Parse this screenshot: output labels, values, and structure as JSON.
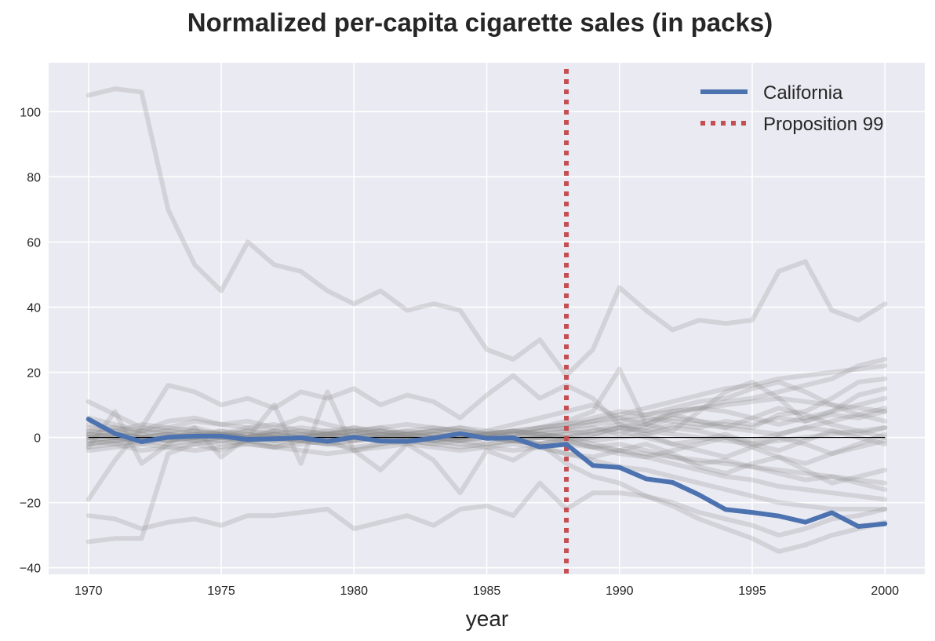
{
  "chart_data": {
    "type": "line",
    "title": "Normalized per-capita cigarette sales (in packs)",
    "xlabel": "year",
    "ylabel": "",
    "xlim": [
      1968.5,
      2001.5
    ],
    "ylim": [
      -42,
      115
    ],
    "xticks": [
      1970,
      1975,
      1980,
      1985,
      1990,
      1995,
      2000
    ],
    "yticks": [
      -40,
      -20,
      0,
      20,
      40,
      60,
      80,
      100
    ],
    "grid": true,
    "legend_position": "top-right",
    "colors": {
      "background": "#EAEAF2",
      "grid": "#FFFFFF",
      "california": "#4C72B0",
      "proposition": "#C44E52",
      "other_states": "#8C8C8C",
      "zero_line": "#000000"
    },
    "x": [
      1970,
      1971,
      1972,
      1973,
      1974,
      1975,
      1976,
      1977,
      1978,
      1979,
      1980,
      1981,
      1982,
      1983,
      1984,
      1985,
      1986,
      1987,
      1988,
      1989,
      1990,
      1991,
      1992,
      1993,
      1994,
      1995,
      1996,
      1997,
      1998,
      1999,
      2000
    ],
    "series": [
      {
        "name": "California",
        "values": [
          5.6,
          1.2,
          -1.3,
          0.1,
          0.4,
          0.4,
          -0.6,
          -0.4,
          -0.1,
          -1.2,
          0.1,
          -1.1,
          -1.2,
          -0.2,
          1.2,
          -0.3,
          -0.1,
          -2.9,
          -2.1,
          -8.6,
          -9.2,
          -12.7,
          -13.8,
          -17.6,
          -22.1,
          -23.0,
          -24.1,
          -26.0,
          -23.1,
          -27.3,
          -26.5
        ]
      },
      {
        "name": "",
        "values": [
          105,
          107,
          106,
          70,
          53,
          45,
          60,
          53,
          51,
          45,
          41,
          45,
          39,
          41,
          39,
          27,
          24,
          30,
          19,
          27,
          46,
          39,
          33,
          36,
          35,
          36,
          51,
          54,
          39,
          36,
          41
        ]
      },
      {
        "name": "",
        "values": [
          -24,
          -25,
          -28,
          -26,
          -25,
          -27,
          -24,
          -24,
          -23,
          -22,
          -28,
          -26,
          -24,
          -27,
          -22,
          -21,
          -24,
          -14,
          -22,
          -17,
          -17,
          -18,
          -20,
          -23,
          -25,
          -27,
          -30,
          -28,
          -25,
          -24,
          -22
        ]
      },
      {
        "name": "",
        "values": [
          -32,
          -31,
          -31,
          -5,
          -2,
          -4,
          -1,
          -3,
          -2,
          -1,
          -4,
          -2,
          0,
          -1,
          -2,
          -3,
          -4,
          -3,
          -5,
          -7,
          -9,
          -10,
          -12,
          -14,
          -16,
          -18,
          -20,
          -21,
          -22,
          -22,
          -22
        ]
      },
      {
        "name": "",
        "values": [
          -19,
          -7,
          3,
          2,
          1,
          1,
          0,
          2,
          1,
          1,
          3,
          1,
          2,
          1,
          0,
          2,
          1,
          3,
          5,
          8,
          21,
          4,
          8,
          9,
          11,
          12,
          14,
          16,
          18,
          22,
          24
        ]
      },
      {
        "name": "",
        "values": [
          11,
          7,
          3,
          16,
          14,
          10,
          12,
          9,
          14,
          12,
          15,
          10,
          13,
          11,
          6,
          13,
          19,
          12,
          16,
          12,
          4,
          3,
          6,
          5,
          4,
          3,
          7,
          8,
          12,
          17,
          18
        ]
      },
      {
        "name": "",
        "values": [
          -3,
          8,
          -8,
          -2,
          3,
          -6,
          0,
          10,
          -8,
          14,
          -4,
          -10,
          -2,
          -7,
          -17,
          -4,
          -7,
          -2,
          -8,
          -12,
          -14,
          -18,
          -21,
          -25,
          -28,
          -31,
          -35,
          -33,
          -30,
          -28,
          -26
        ]
      },
      {
        "name": "",
        "values": [
          2,
          1,
          0,
          -1,
          1,
          2,
          0,
          1,
          -1,
          0,
          1,
          2,
          1,
          0,
          -1,
          1,
          0,
          2,
          3,
          5,
          7,
          9,
          11,
          13,
          15,
          16,
          18,
          19,
          20,
          21,
          22
        ]
      },
      {
        "name": "",
        "values": [
          -2,
          -1,
          0,
          1,
          -1,
          0,
          2,
          1,
          0,
          -1,
          0,
          1,
          0,
          -1,
          1,
          0,
          -1,
          0,
          -1,
          -3,
          -5,
          -6,
          -8,
          -10,
          -12,
          -13,
          -15,
          -16,
          -17,
          -18,
          -19
        ]
      },
      {
        "name": "",
        "values": [
          3,
          2,
          4,
          3,
          5,
          4,
          3,
          2,
          1,
          2,
          3,
          2,
          1,
          2,
          3,
          2,
          4,
          6,
          8,
          10,
          6,
          4,
          2,
          8,
          14,
          17,
          12,
          5,
          8,
          13,
          15
        ]
      },
      {
        "name": "",
        "values": [
          -4,
          -3,
          -2,
          -3,
          -4,
          -3,
          -2,
          -3,
          -4,
          -5,
          -4,
          -3,
          -2,
          -3,
          -4,
          -3,
          -2,
          -3,
          -5,
          -6,
          -4,
          -2,
          -5,
          -9,
          -11,
          -8,
          -6,
          -10,
          -14,
          -12,
          -10
        ]
      },
      {
        "name": "",
        "values": [
          1,
          0,
          -1,
          0,
          1,
          0,
          -1,
          0,
          1,
          0,
          -1,
          0,
          1,
          0,
          -1,
          0,
          1,
          0,
          1,
          2,
          3,
          2,
          1,
          0,
          -1,
          -2,
          -1,
          0,
          1,
          2,
          3
        ]
      },
      {
        "name": "",
        "values": [
          0,
          1,
          2,
          1,
          0,
          -1,
          0,
          1,
          2,
          1,
          0,
          1,
          2,
          3,
          2,
          1,
          2,
          3,
          4,
          5,
          6,
          7,
          8,
          9,
          10,
          11,
          12,
          11,
          10,
          9,
          8
        ]
      },
      {
        "name": "",
        "values": [
          -1,
          -2,
          -1,
          0,
          -1,
          -2,
          -1,
          0,
          -1,
          -2,
          -1,
          0,
          -1,
          -2,
          -1,
          0,
          -1,
          -2,
          -2,
          -3,
          -4,
          -5,
          -6,
          -7,
          -8,
          -9,
          -10,
          -11,
          -12,
          -13,
          -14
        ]
      },
      {
        "name": "",
        "values": [
          4,
          3,
          2,
          5,
          6,
          4,
          5,
          3,
          6,
          4,
          2,
          3,
          4,
          3,
          2,
          1,
          2,
          3,
          4,
          6,
          8,
          7,
          9,
          11,
          12,
          15,
          17,
          14,
          10,
          7,
          5
        ]
      },
      {
        "name": "",
        "values": [
          -3,
          -2,
          -4,
          -3,
          -2,
          -1,
          -2,
          -3,
          -1,
          -2,
          -3,
          -2,
          -1,
          -2,
          -3,
          -2,
          -1,
          -2,
          0,
          2,
          4,
          1,
          -2,
          -4,
          -6,
          -3,
          0,
          -2,
          -5,
          -3,
          -1
        ]
      },
      {
        "name": "",
        "values": [
          2,
          3,
          1,
          2,
          3,
          1,
          0,
          2,
          3,
          2,
          1,
          0,
          1,
          2,
          1,
          0,
          1,
          2,
          3,
          4,
          5,
          6,
          5,
          4,
          3,
          2,
          1,
          3,
          5,
          7,
          9
        ]
      },
      {
        "name": "",
        "values": [
          -1,
          0,
          1,
          -1,
          0,
          1,
          2,
          0,
          -1,
          0,
          1,
          2,
          0,
          -1,
          0,
          1,
          2,
          1,
          0,
          -2,
          -4,
          -6,
          -4,
          -2,
          0,
          -3,
          -6,
          -8,
          -5,
          -2,
          1
        ]
      },
      {
        "name": "",
        "values": [
          1,
          2,
          0,
          -1,
          0,
          2,
          1,
          -1,
          0,
          1,
          2,
          0,
          -1,
          1,
          2,
          0,
          -1,
          0,
          2,
          3,
          1,
          4,
          7,
          5,
          3,
          6,
          9,
          7,
          4,
          2,
          0
        ]
      },
      {
        "name": "",
        "values": [
          0,
          -1,
          -2,
          0,
          1,
          0,
          -1,
          -2,
          0,
          1,
          0,
          -1,
          -2,
          0,
          1,
          0,
          -1,
          -2,
          -1,
          0,
          2,
          0,
          -2,
          -1,
          1,
          -2,
          -4,
          -1,
          2,
          0,
          -2
        ]
      },
      {
        "name": "",
        "values": [
          6,
          4,
          2,
          3,
          2,
          1,
          3,
          4,
          2,
          1,
          2,
          3,
          1,
          2,
          3,
          1,
          2,
          1,
          0,
          -1,
          0,
          1,
          3,
          2,
          0,
          -1,
          1,
          3,
          2,
          1,
          3
        ]
      },
      {
        "name": "",
        "values": [
          -2,
          -1,
          0,
          1,
          2,
          1,
          0,
          -1,
          0,
          1,
          2,
          1,
          0,
          -1,
          0,
          1,
          2,
          1,
          0,
          1,
          3,
          5,
          7,
          9,
          8,
          6,
          4,
          6,
          8,
          10,
          12
        ]
      },
      {
        "name": "",
        "values": [
          1,
          0,
          -1,
          -2,
          -1,
          0,
          1,
          0,
          -1,
          -2,
          -1,
          0,
          1,
          0,
          -1,
          -2,
          -1,
          0,
          -1,
          -3,
          -2,
          -4,
          -6,
          -8,
          -7,
          -9,
          -11,
          -13,
          -12,
          -14,
          -16
        ]
      },
      {
        "name": "",
        "values": [
          0,
          1,
          0,
          1,
          0,
          1,
          0,
          1,
          0,
          1,
          0,
          1,
          0,
          1,
          0,
          1,
          0,
          1,
          2,
          1,
          3,
          2,
          4,
          3,
          5,
          4,
          6,
          5,
          7,
          6,
          8
        ]
      }
    ]
  },
  "legend": {
    "items": [
      {
        "label": "California"
      },
      {
        "label": "Proposition 99"
      }
    ]
  },
  "intervention_year": 1988
}
